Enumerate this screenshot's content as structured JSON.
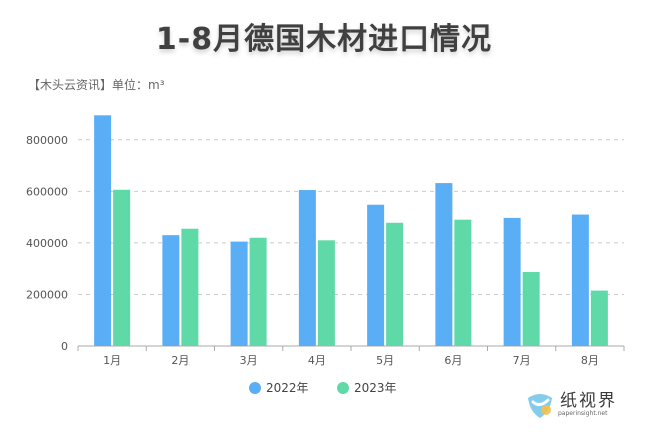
{
  "chart_data": {
    "type": "bar",
    "title": "1-8月德国木材进口情况",
    "subtitle": "【木头云资讯】单位：m³",
    "categories": [
      "1月",
      "2月",
      "3月",
      "4月",
      "5月",
      "6月",
      "7月",
      "8月"
    ],
    "series": [
      {
        "name": "2022年",
        "color": "#5aaef5",
        "values": [
          895000,
          430000,
          405000,
          605000,
          548000,
          632000,
          497000,
          510000
        ]
      },
      {
        "name": "2023年",
        "color": "#5fd9a8",
        "values": [
          606000,
          455000,
          420000,
          410000,
          478000,
          490000,
          287000,
          215000
        ]
      }
    ],
    "ylim": [
      0,
      900000
    ],
    "yticks": [
      "0",
      "200000",
      "400000",
      "600000",
      "800000"
    ],
    "ytick_values": [
      0,
      200000,
      400000,
      600000,
      800000
    ],
    "grid": true,
    "legend_position": "bottom-center"
  },
  "watermark": {
    "text": "纸视界",
    "url": "paperinsight.net"
  }
}
